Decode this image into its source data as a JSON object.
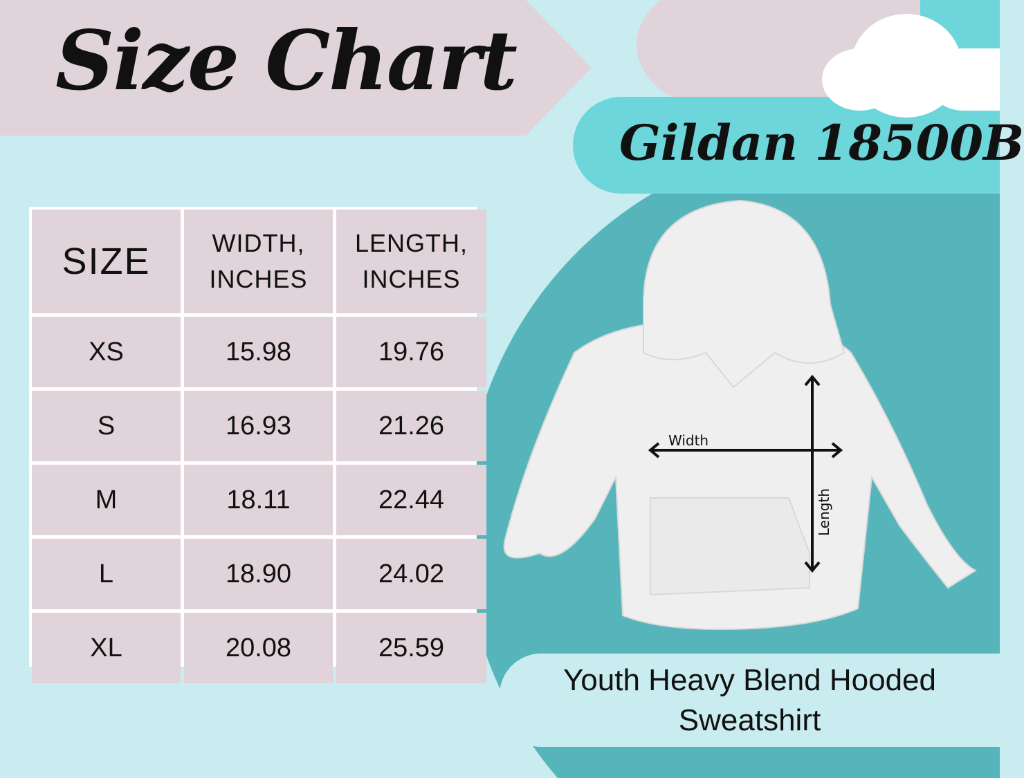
{
  "title": "Size Chart",
  "brand": "Gildan 18500B",
  "table": {
    "headers": [
      "SIZE",
      [
        "WIDTH,",
        "INCHES"
      ],
      [
        "LENGTH,",
        "INCHES"
      ]
    ],
    "rows": [
      [
        "XS",
        "15.98",
        "19.76"
      ],
      [
        "S",
        "16.93",
        "21.26"
      ],
      [
        "M",
        "18.11",
        "22.44"
      ],
      [
        "L",
        "18.90",
        "24.02"
      ],
      [
        "XL",
        "20.08",
        "25.59"
      ]
    ]
  },
  "diagram": {
    "width_label": "Width",
    "length_label": "Length"
  },
  "description": {
    "line1": "Youth Heavy Blend Hooded",
    "line2": "Sweatshirt"
  },
  "colors": {
    "background": "#c9ecf1",
    "pink": "#e0d3da",
    "teal": "#6cd6da",
    "dark_teal": "#56b5ba"
  }
}
